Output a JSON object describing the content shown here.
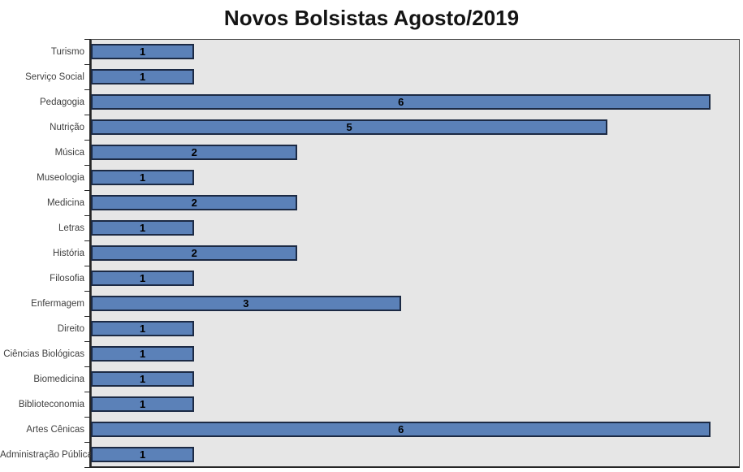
{
  "chart_data": {
    "type": "bar",
    "orientation": "horizontal",
    "title": "Novos Bolsistas Agosto/2019",
    "categories": [
      "Turismo",
      "Serviço Social",
      "Pedagogia",
      "Nutrição",
      "Música",
      "Museologia",
      "Medicina",
      "Letras",
      "História",
      "Filosofia",
      "Enfermagem",
      "Direito",
      "Ciências Biológicas",
      "Biomedicina",
      "Biblioteconomia",
      "Artes Cênicas",
      "Administração Pública"
    ],
    "values": [
      1,
      1,
      6,
      5,
      2,
      1,
      2,
      1,
      2,
      1,
      3,
      1,
      1,
      1,
      1,
      6,
      1
    ],
    "xlabel": "",
    "ylabel": "",
    "xlim": [
      0,
      6.28
    ],
    "grid": false,
    "legend": false,
    "data_labels": "centered-bold",
    "x_axis_tick_labels": false,
    "colors": {
      "bar_fill": "#5b81b8",
      "bar_border": "#1c2a44",
      "plot_background": "#e6e6e6",
      "axis_line": "#262626",
      "category_label_text": "#3f3f3f",
      "value_label_text": "#000000",
      "title_text": "#141414",
      "page_background": "#ffffff"
    }
  }
}
